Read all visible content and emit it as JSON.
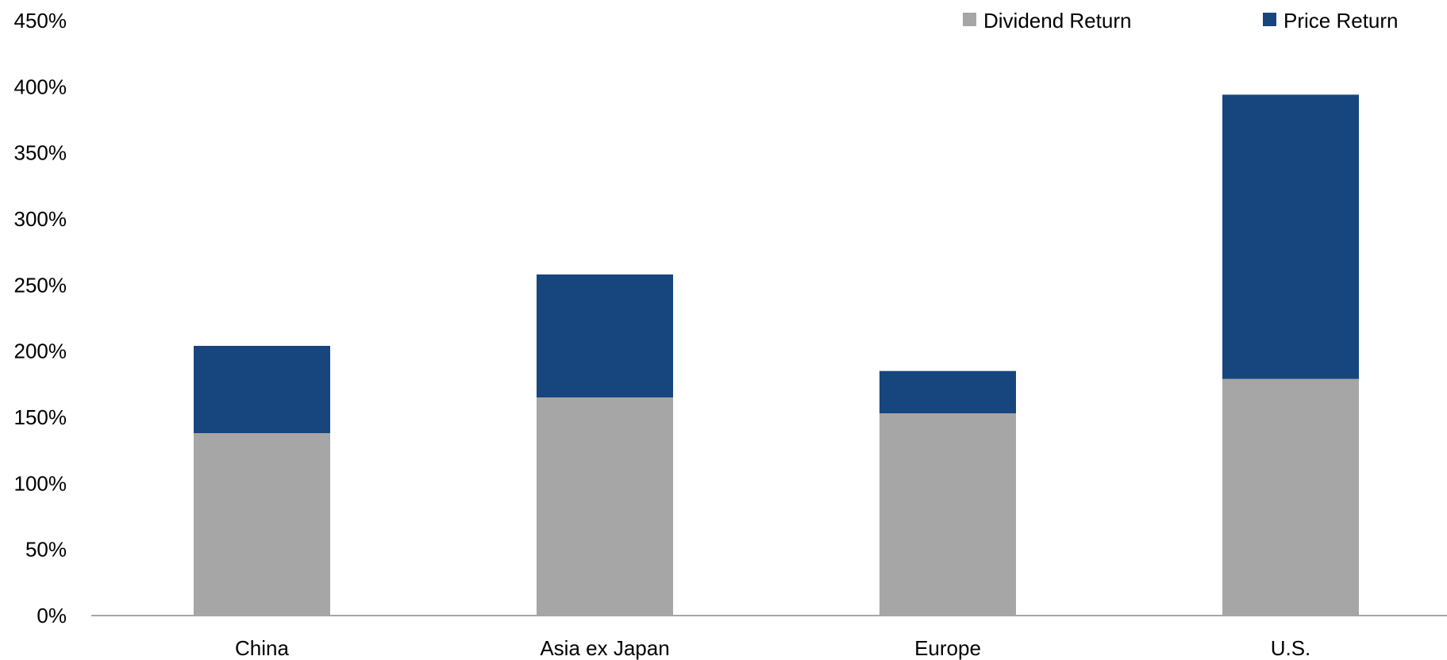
{
  "chart_data": {
    "type": "bar",
    "stacked": true,
    "categories": [
      "China",
      "Asia ex Japan",
      "Europe",
      "U.S."
    ],
    "series": [
      {
        "name": "Dividend Return",
        "values": [
          138,
          165,
          153,
          179
        ],
        "color": "#a6a6a6"
      },
      {
        "name": "Price Return",
        "values": [
          66,
          93,
          32,
          215
        ],
        "color": "#17467f"
      }
    ],
    "y_ticks": [
      "0%",
      "50%",
      "100%",
      "150%",
      "200%",
      "250%",
      "300%",
      "350%",
      "400%",
      "450%"
    ],
    "ylim": [
      0,
      450
    ],
    "title": "",
    "xlabel": "",
    "ylabel": "",
    "grid": false,
    "legend_position": "top-right",
    "axis_color": "#a6a6a6"
  }
}
